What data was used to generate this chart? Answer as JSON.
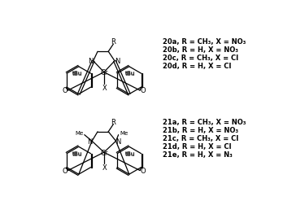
{
  "background_color": "#ffffff",
  "figure_width": 3.59,
  "figure_height": 2.53,
  "dpi": 100,
  "top_labels": [
    [
      "20a",
      ", R = CH",
      "3",
      ", X = NO",
      "3"
    ],
    [
      "20b",
      ", R = H, X = NO",
      "3",
      "",
      ""
    ],
    [
      "20c",
      ", R = CH",
      "3",
      ", X = Cl",
      ""
    ],
    [
      "20d",
      ", R = H, X = Cl",
      "",
      "",
      ""
    ]
  ],
  "bottom_labels": [
    [
      "21a",
      ", R = CH",
      "3",
      ", X = NO",
      "3"
    ],
    [
      "21b",
      ", R = H, X = NO",
      "3",
      "",
      ""
    ],
    [
      "21c",
      ", R = CH",
      "3",
      ", X = Cl",
      ""
    ],
    [
      "21d",
      ", R = H, X = Cl",
      "",
      "",
      ""
    ],
    [
      "21e",
      ", R = H, X = N",
      "3",
      "",
      ""
    ]
  ],
  "line_width": 0.9,
  "font_size": 5.8
}
